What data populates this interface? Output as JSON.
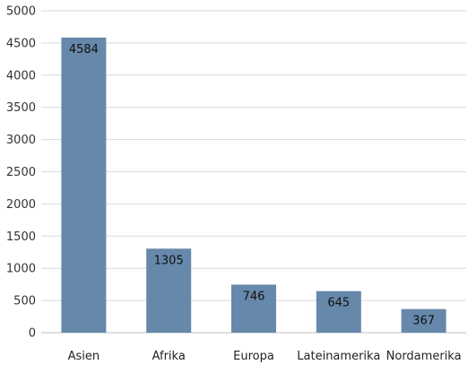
{
  "chart_data": {
    "type": "bar",
    "categories": [
      "Asien",
      "Afrika",
      "Europa",
      "Lateinamerika",
      "Nordamerika"
    ],
    "values": [
      4584,
      1305,
      746,
      645,
      367
    ],
    "data_labels": [
      "4584",
      "1305",
      "746",
      "645",
      "367"
    ],
    "title": "",
    "xlabel": "",
    "ylabel": "",
    "ylim": [
      0,
      5000
    ],
    "yticks": [
      0,
      500,
      1000,
      1500,
      2000,
      2500,
      3000,
      3500,
      4000,
      4500,
      5000
    ],
    "ytick_labels": [
      "0",
      "500",
      "1000",
      "1500",
      "2000",
      "2500",
      "3000",
      "3500",
      "4000",
      "4500",
      "5000"
    ],
    "grid": true,
    "legend": "none",
    "bar_color": "#6688aa"
  }
}
